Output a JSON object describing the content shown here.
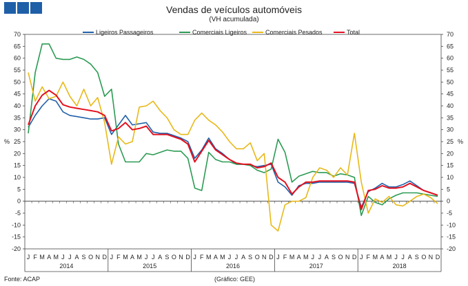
{
  "header": {
    "logo_icon": "blue-squares-logo-icon",
    "logo_color": "#1f5fa8"
  },
  "chart_data": {
    "type": "line",
    "title": "Vendas de veículos automóveis",
    "subtitle": "(VH acumulada)",
    "ylabel_left": "%",
    "ylabel_right": "%",
    "ylim": [
      -20,
      70
    ],
    "yticks": [
      -20,
      -15,
      -10,
      -5,
      0,
      5,
      10,
      15,
      20,
      25,
      30,
      35,
      40,
      45,
      50,
      55,
      60,
      65,
      70
    ],
    "months": [
      "J",
      "F",
      "M",
      "A",
      "M",
      "J",
      "J",
      "A",
      "S",
      "O",
      "N",
      "D",
      "J",
      "F",
      "M",
      "A",
      "M",
      "J",
      "J",
      "A",
      "S",
      "O",
      "N",
      "D",
      "J",
      "F",
      "M",
      "A",
      "M",
      "J",
      "J",
      "A",
      "S",
      "O",
      "N",
      "D",
      "J",
      "F",
      "M",
      "A",
      "M",
      "J",
      "J",
      "A",
      "S",
      "O",
      "N",
      "D",
      "J",
      "F",
      "M",
      "A",
      "M",
      "J",
      "J",
      "A",
      "S",
      "O",
      "N",
      "D"
    ],
    "years": [
      "2014",
      "2015",
      "2016",
      "2017",
      "2018"
    ],
    "legend_position": "top",
    "series": [
      {
        "name": "Ligeiros Passageiros",
        "color": "#1f5fa8",
        "values": [
          31,
          36,
          40,
          43,
          42,
          37.5,
          36,
          35.5,
          35,
          34.5,
          34.5,
          35,
          28,
          32,
          36,
          32,
          32.5,
          33,
          29,
          28.5,
          28.5,
          27.5,
          26.5,
          25,
          18,
          21.5,
          26.5,
          22,
          20,
          17.5,
          15.5,
          15.5,
          15,
          14.5,
          15,
          15.5,
          8,
          6,
          2.5,
          6.5,
          7.5,
          7.5,
          8,
          8,
          8,
          8,
          8,
          7.5,
          -2.5,
          4,
          5.5,
          7.5,
          6,
          6,
          7,
          8.5,
          6.5,
          4.5,
          3.5,
          2.5
        ]
      },
      {
        "name": "Comerciais Ligeiros",
        "color": "#2a9a52",
        "values": [
          28.5,
          54,
          66,
          66,
          60,
          59.5,
          59.5,
          60.5,
          59.5,
          57.5,
          54,
          44,
          47,
          24,
          16.5,
          16.5,
          16.5,
          20,
          19.5,
          20.5,
          21.5,
          21,
          21,
          18,
          5.5,
          4.5,
          20.5,
          17.5,
          16.5,
          16.5,
          15.5,
          15.5,
          15,
          13,
          12,
          13.5,
          26,
          20.5,
          8,
          10.5,
          11.5,
          12.5,
          12,
          12,
          10.5,
          11.5,
          11,
          10,
          -6,
          2,
          -0.5,
          -1.5,
          1,
          2.5,
          3.5,
          3.5,
          3.5,
          3,
          2.5,
          2
        ]
      },
      {
        "name": "Comerciais Pesados",
        "color": "#e8b818",
        "values": [
          54,
          42,
          48,
          43,
          44,
          50,
          44,
          40,
          47,
          40,
          43.5,
          33,
          15.5,
          27,
          24,
          25,
          39.5,
          40,
          42,
          38,
          35,
          30,
          28,
          28,
          34,
          37,
          34,
          32,
          29,
          25,
          22,
          22,
          24.5,
          17,
          20,
          -10,
          -12.5,
          -1.5,
          0,
          0,
          1.5,
          10,
          14,
          13,
          10,
          14,
          11,
          28.5,
          8,
          -5,
          1,
          -0.5,
          2,
          -1.5,
          -2,
          0,
          2,
          3,
          1.5,
          -1
        ]
      },
      {
        "name": "Total",
        "color": "#e3101f",
        "values": [
          32,
          40,
          44.5,
          46.5,
          44.5,
          40.5,
          39.5,
          39,
          38.5,
          38,
          37.5,
          36,
          29.5,
          30.5,
          33,
          30,
          30.5,
          31.5,
          28,
          28,
          28,
          27,
          26,
          24,
          16.5,
          21,
          25.5,
          21.5,
          19.5,
          17.5,
          16,
          15.5,
          15.5,
          14,
          14.5,
          16,
          10,
          8,
          3,
          6,
          8,
          8,
          8.5,
          8.5,
          8.5,
          8.5,
          8.5,
          8,
          -3.5,
          4.5,
          5,
          6.5,
          5.5,
          5.5,
          6,
          7.5,
          6,
          4.5,
          3.5,
          2.5
        ]
      }
    ]
  },
  "footer": {
    "source": "Fonte: ACAP",
    "credit": "(Gráfico: GEE)"
  }
}
